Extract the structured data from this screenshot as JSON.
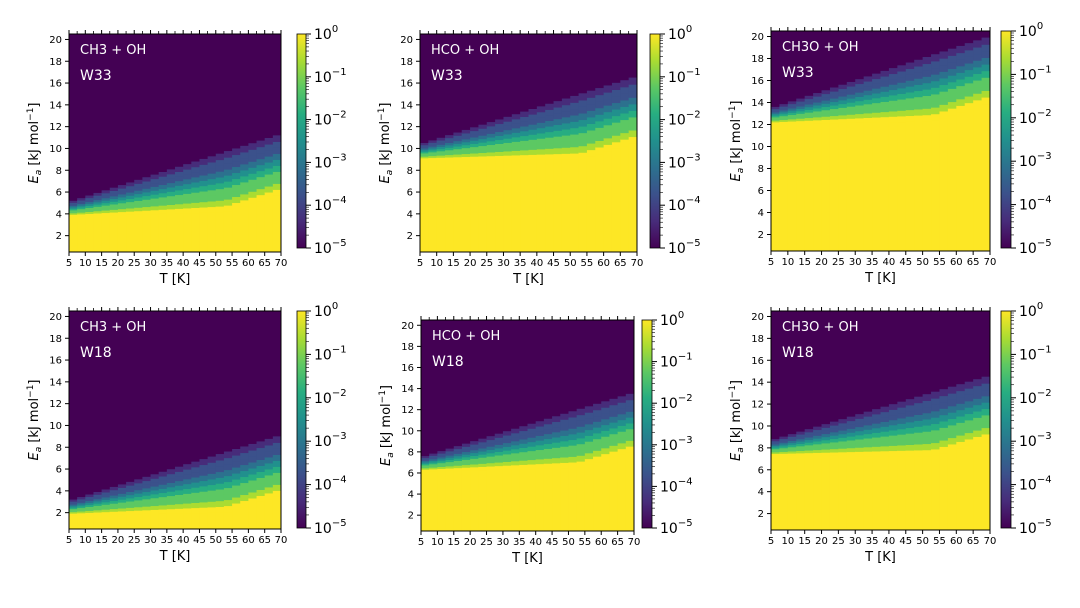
{
  "colors": {
    "viridis": [
      "#440154",
      "#472c7a",
      "#3b518b",
      "#2c718e",
      "#21908d",
      "#27ad81",
      "#5cc863",
      "#aadc32",
      "#fde725"
    ]
  },
  "chart_data": [
    {
      "type": "heatmap",
      "title": "",
      "label_reaction": "CH3 + OH",
      "label_surface": "W33",
      "xlabel": "T [K]",
      "ylabel_main": "E",
      "ylabel_sub": "a",
      "ylabel_unit": " [kJ mol",
      "ylabel_sup": "−1",
      "ylabel_close": "]",
      "x_ticks": [
        "5",
        "10",
        "15",
        "20",
        "25",
        "30",
        "35",
        "40",
        "45",
        "50",
        "55",
        "60",
        "65",
        "70"
      ],
      "y_ticks": [
        "2",
        "4",
        "6",
        "8",
        "10",
        "12",
        "14",
        "16",
        "18",
        "20"
      ],
      "xlim": [
        5,
        70
      ],
      "ylim": [
        0.5,
        20.5
      ],
      "threshold_start_kJmol": 5.2,
      "threshold_end_kJmol": 11.2,
      "gradient_height_kJmol": 5.5,
      "colorbar_ticks": [
        {
          "base": "10",
          "exp": "0"
        },
        {
          "base": "10",
          "exp": "−1"
        },
        {
          "base": "10",
          "exp": "−2"
        },
        {
          "base": "10",
          "exp": "−3"
        },
        {
          "base": "10",
          "exp": "−4"
        },
        {
          "base": "10",
          "exp": "−5"
        }
      ]
    },
    {
      "type": "heatmap",
      "title": "",
      "label_reaction": "HCO + OH",
      "label_surface": "W33",
      "xlabel": "T [K]",
      "ylabel_main": "E",
      "ylabel_sub": "a",
      "ylabel_unit": " [kJ mol",
      "ylabel_sup": "−1",
      "ylabel_close": "]",
      "x_ticks": [
        "5",
        "10",
        "15",
        "20",
        "25",
        "30",
        "35",
        "40",
        "45",
        "50",
        "55",
        "60",
        "65",
        "70"
      ],
      "y_ticks": [
        "2",
        "4",
        "6",
        "8",
        "10",
        "12",
        "14",
        "16",
        "18",
        "20"
      ],
      "xlim": [
        5,
        70
      ],
      "ylim": [
        0.5,
        20.5
      ],
      "threshold_start_kJmol": 10.5,
      "threshold_end_kJmol": 16.5,
      "gradient_height_kJmol": 6.0,
      "colorbar_ticks": [
        {
          "base": "10",
          "exp": "0"
        },
        {
          "base": "10",
          "exp": "−1"
        },
        {
          "base": "10",
          "exp": "−2"
        },
        {
          "base": "10",
          "exp": "−3"
        },
        {
          "base": "10",
          "exp": "−4"
        },
        {
          "base": "10",
          "exp": "−5"
        }
      ]
    },
    {
      "type": "heatmap",
      "title": "",
      "label_reaction": "CH3O + OH",
      "label_surface": "W33",
      "xlabel": "T [K]",
      "ylabel_main": "E",
      "ylabel_sub": "a",
      "ylabel_unit": " [kJ mol",
      "ylabel_sup": "−1",
      "ylabel_close": "]",
      "x_ticks": [
        "5",
        "10",
        "15",
        "20",
        "25",
        "30",
        "35",
        "40",
        "45",
        "50",
        "55",
        "60",
        "65",
        "70"
      ],
      "y_ticks": [
        "2",
        "4",
        "6",
        "8",
        "10",
        "12",
        "14",
        "16",
        "18",
        "20"
      ],
      "xlim": [
        5,
        70
      ],
      "ylim": [
        0.5,
        20.5
      ],
      "threshold_start_kJmol": 13.6,
      "threshold_end_kJmol": 19.9,
      "gradient_height_kJmol": 6.0,
      "colorbar_ticks": [
        {
          "base": "10",
          "exp": "0"
        },
        {
          "base": "10",
          "exp": "−1"
        },
        {
          "base": "10",
          "exp": "−2"
        },
        {
          "base": "10",
          "exp": "−3"
        },
        {
          "base": "10",
          "exp": "−4"
        },
        {
          "base": "10",
          "exp": "−5"
        }
      ]
    },
    {
      "type": "heatmap",
      "title": "",
      "label_reaction": "CH3 + OH",
      "label_surface": "W18",
      "xlabel": "T [K]",
      "ylabel_main": "E",
      "ylabel_sub": "a",
      "ylabel_unit": " [kJ mol",
      "ylabel_sup": "−1",
      "ylabel_close": "]",
      "x_ticks": [
        "5",
        "10",
        "15",
        "20",
        "25",
        "30",
        "35",
        "40",
        "45",
        "50",
        "55",
        "60",
        "65",
        "70"
      ],
      "y_ticks": [
        "2",
        "4",
        "6",
        "8",
        "10",
        "12",
        "14",
        "16",
        "18",
        "20"
      ],
      "xlim": [
        5,
        70
      ],
      "ylim": [
        0.5,
        20.5
      ],
      "threshold_start_kJmol": 3.2,
      "threshold_end_kJmol": 9.0,
      "gradient_height_kJmol": 5.5,
      "colorbar_ticks": [
        {
          "base": "10",
          "exp": "0"
        },
        {
          "base": "10",
          "exp": "−1"
        },
        {
          "base": "10",
          "exp": "−2"
        },
        {
          "base": "10",
          "exp": "−3"
        },
        {
          "base": "10",
          "exp": "−4"
        },
        {
          "base": "10",
          "exp": "−5"
        }
      ]
    },
    {
      "type": "heatmap",
      "title": "",
      "label_reaction": "HCO + OH",
      "label_surface": "W18",
      "xlabel": "T [K]",
      "ylabel_main": "E",
      "ylabel_sub": "a",
      "ylabel_unit": " [kJ mol",
      "ylabel_sup": "−1",
      "ylabel_close": "]",
      "x_ticks": [
        "5",
        "10",
        "15",
        "20",
        "25",
        "30",
        "35",
        "40",
        "45",
        "50",
        "55",
        "60",
        "65",
        "70"
      ],
      "y_ticks": [
        "2",
        "4",
        "6",
        "8",
        "10",
        "12",
        "14",
        "16",
        "18",
        "20"
      ],
      "xlim": [
        5,
        70
      ],
      "ylim": [
        0.5,
        20.5
      ],
      "threshold_start_kJmol": 7.6,
      "threshold_end_kJmol": 13.5,
      "gradient_height_kJmol": 5.5,
      "colorbar_ticks": [
        {
          "base": "10",
          "exp": "0"
        },
        {
          "base": "10",
          "exp": "−1"
        },
        {
          "base": "10",
          "exp": "−2"
        },
        {
          "base": "10",
          "exp": "−3"
        },
        {
          "base": "10",
          "exp": "−4"
        },
        {
          "base": "10",
          "exp": "−5"
        }
      ]
    },
    {
      "type": "heatmap",
      "title": "",
      "label_reaction": "CH3O + OH",
      "label_surface": "W18",
      "xlabel": "T [K]",
      "ylabel_main": "E",
      "ylabel_sub": "a",
      "ylabel_unit": " [kJ mol",
      "ylabel_sup": "−1",
      "ylabel_close": "]",
      "x_ticks": [
        "5",
        "10",
        "15",
        "20",
        "25",
        "30",
        "35",
        "40",
        "45",
        "50",
        "55",
        "60",
        "65",
        "70"
      ],
      "y_ticks": [
        "2",
        "4",
        "6",
        "8",
        "10",
        "12",
        "14",
        "16",
        "18",
        "20"
      ],
      "xlim": [
        5,
        70
      ],
      "ylim": [
        0.5,
        20.5
      ],
      "threshold_start_kJmol": 8.8,
      "threshold_end_kJmol": 14.5,
      "gradient_height_kJmol": 5.8,
      "colorbar_ticks": [
        {
          "base": "10",
          "exp": "0"
        },
        {
          "base": "10",
          "exp": "−1"
        },
        {
          "base": "10",
          "exp": "−2"
        },
        {
          "base": "10",
          "exp": "−3"
        },
        {
          "base": "10",
          "exp": "−4"
        },
        {
          "base": "10",
          "exp": "−5"
        }
      ]
    }
  ]
}
